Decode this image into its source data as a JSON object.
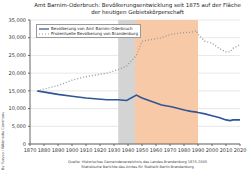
{
  "chart_data": {
    "type": "line",
    "title": "Amt Barnim-Oderbruch: Bevölkerungsentwicklung seit 1875 auf der Fläche der heutigen Gebietskörperschaft",
    "x": [
      1875,
      1890,
      1900,
      1910,
      1925,
      1933,
      1939,
      1946,
      1950,
      1964,
      1971,
      1981,
      1985,
      1989,
      1990,
      1995,
      2000,
      2005,
      2010,
      2013,
      2015,
      2020
    ],
    "series": [
      {
        "name": "Bevölkerung von Amt Barnim-Oderbruch",
        "color": "#2f5597",
        "line_style": "solid",
        "values": [
          15000,
          14000,
          13500,
          13000,
          12500,
          12500,
          12300,
          13800,
          13000,
          11000,
          10500,
          9500,
          9200,
          9000,
          8900,
          8500,
          8000,
          7500,
          6800,
          6600,
          6800,
          6800
        ]
      },
      {
        "name": "Prozentuelle Bevölkerung von Brandenburg",
        "color": "#9a9a9a",
        "line_style": "dotted",
        "values": [
          15000,
          16500,
          18000,
          19000,
          20000,
          21000,
          22000,
          25000,
          29000,
          30000,
          31000,
          31500,
          31500,
          32000,
          31000,
          29000,
          28500,
          27000,
          26000,
          26000,
          27000,
          28000
        ]
      }
    ],
    "periods": [
      {
        "x1": 1933,
        "x2": 1945,
        "color": "#d4d4d4"
      },
      {
        "x1": 1945,
        "x2": 1990,
        "color": "#f7c9a6"
      }
    ],
    "xlim": [
      1870,
      2020
    ],
    "xticks": [
      1870,
      1880,
      1890,
      1900,
      1910,
      1920,
      1930,
      1940,
      1950,
      1960,
      1970,
      1980,
      1990,
      2000,
      2010,
      2020
    ],
    "ylim": [
      0,
      35000
    ],
    "yticks": [
      0,
      {
        "value": 5000,
        "label": "5,000"
      },
      {
        "value": 10000,
        "label": "10,000"
      },
      {
        "value": 15000,
        "label": "15,000"
      },
      {
        "value": 20000,
        "label": "20,000"
      },
      {
        "value": 25000,
        "label": "25,000"
      },
      {
        "value": 30000,
        "label": "30,000"
      },
      {
        "value": 35000,
        "label": "35,000"
      }
    ],
    "grid": true,
    "legend": "upper left",
    "footer": [
      "Quelle: Historisches Gemeindeverzeichnis des Landes Brandenburg 1875-2005",
      "Statistische Berichte des Amtes für Statistik Berlin-Brandenburg"
    ],
    "author": "By Tuxyso / Wikimedia Commons"
  }
}
